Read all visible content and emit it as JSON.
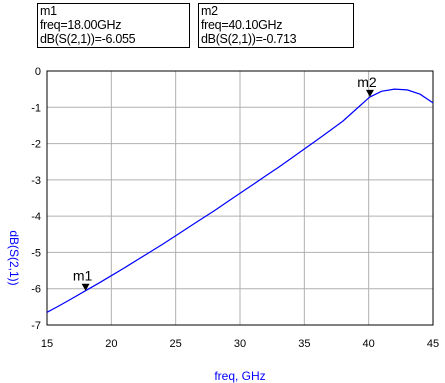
{
  "markers": [
    {
      "name": "m1",
      "freq_line": "freq=18.00GHz",
      "value_line": "dB(S(2,1))=-6.055",
      "x": 18.0,
      "y": -6.055
    },
    {
      "name": "m2",
      "freq_line": "freq=40.10GHz",
      "value_line": "dB(S(2,1))=-0.713",
      "x": 40.1,
      "y": -0.713
    }
  ],
  "chart_data": {
    "type": "line",
    "xlabel": "freq, GHz",
    "ylabel": "dB(S(2,1))",
    "xlim": [
      15,
      45
    ],
    "ylim": [
      -7,
      0
    ],
    "xticks": [
      15,
      20,
      25,
      30,
      35,
      40,
      45
    ],
    "yticks": [
      0,
      -1,
      -2,
      -3,
      -4,
      -5,
      -6,
      -7
    ],
    "grid": true,
    "series": [
      {
        "color": "#0000ff",
        "x": [
          15,
          16,
          17,
          18,
          19,
          20,
          21,
          22,
          23,
          24,
          25,
          26,
          27,
          28,
          29,
          30,
          31,
          32,
          33,
          34,
          35,
          36,
          37,
          38,
          39,
          40,
          40.1,
          41,
          42,
          43,
          44,
          45
        ],
        "y": [
          -6.65,
          -6.46,
          -6.26,
          -6.055,
          -5.85,
          -5.64,
          -5.43,
          -5.21,
          -4.99,
          -4.77,
          -4.54,
          -4.31,
          -4.08,
          -3.85,
          -3.61,
          -3.37,
          -3.13,
          -2.89,
          -2.65,
          -2.4,
          -2.15,
          -1.9,
          -1.64,
          -1.38,
          -1.06,
          -0.74,
          -0.713,
          -0.56,
          -0.5,
          -0.52,
          -0.64,
          -0.88
        ]
      }
    ]
  }
}
